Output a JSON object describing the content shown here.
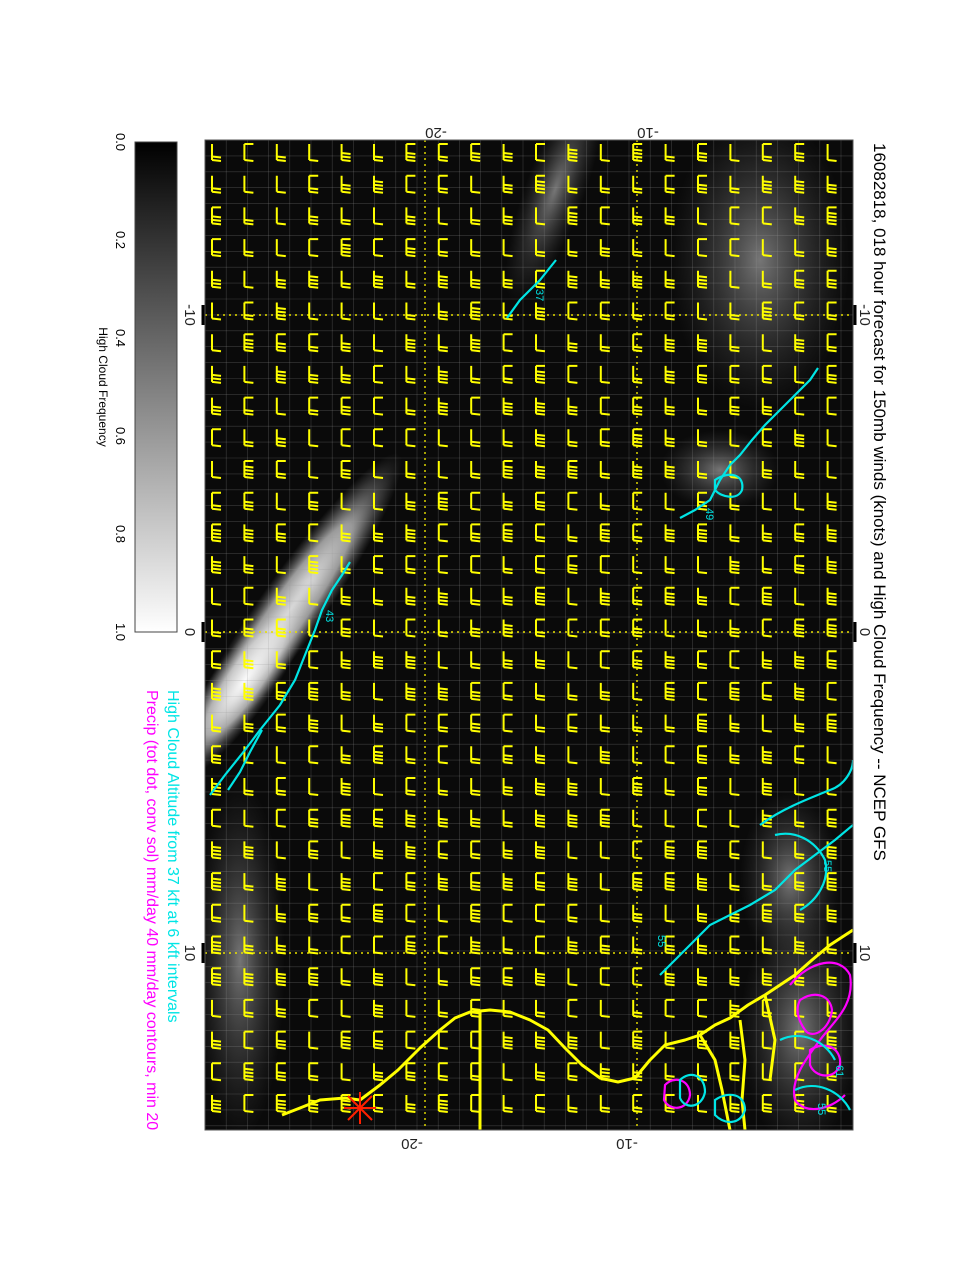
{
  "title": "16082818, 018 hour forecast for 150mb winds (knots) and High Cloud Frequency -- NCEP GFS",
  "subtitle_cyan": "High Cloud Altitude from 37 kft at 6 kft intervals",
  "subtitle_magenta": "Precip (tot dot, conv sol) mm/day 40 mm/day contours, min 20",
  "colorbar": {
    "label": "High Cloud Frequency",
    "ticks": [
      "0.0",
      "0.2",
      "0.4",
      "0.6",
      "0.8",
      "1.0"
    ]
  },
  "axes": {
    "top_ticks": [
      "-20",
      "-10"
    ],
    "bottom_ticks": [
      "-20",
      "-10"
    ],
    "left_ticks": [
      "-10",
      "0",
      "10"
    ],
    "right_ticks": [
      "-10",
      "0",
      "10"
    ]
  },
  "contour_labels": [
    {
      "text": "37",
      "color": "cyan"
    },
    {
      "text": "43",
      "color": "cyan"
    },
    {
      "text": "49",
      "color": "cyan"
    },
    {
      "text": "55",
      "color": "cyan"
    },
    {
      "text": "55",
      "color": "cyan"
    },
    {
      "text": "61",
      "color": "cyan"
    },
    {
      "text": "55",
      "color": "cyan"
    }
  ],
  "colors": {
    "barbs": "#ffff00",
    "coast": "#ffff00",
    "cloud_contour": "#00e5e5",
    "precip": "#ff00ff",
    "marker": "#ff2000",
    "grid": "#e8e000"
  }
}
